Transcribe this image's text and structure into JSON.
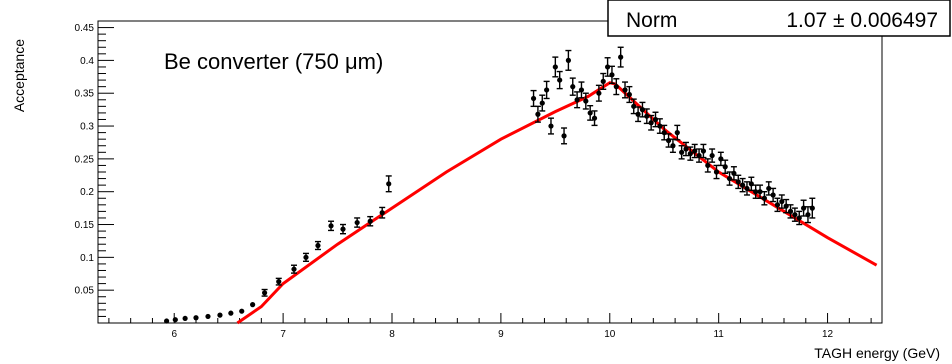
{
  "chart_data": {
    "type": "scatter",
    "title": "",
    "xlabel": "TAGH energy   (GeV)",
    "ylabel": "Acceptance",
    "annotation": "Be converter (750 μm)",
    "stats_box": {
      "label": "Norm",
      "value": "1.07 ± 0.006497"
    },
    "xlim": [
      5.3,
      12.5
    ],
    "ylim": [
      0,
      0.46
    ],
    "x_ticks": [
      6,
      7,
      8,
      9,
      10,
      11,
      12
    ],
    "x_tick_labels": [
      "6",
      "7",
      "8",
      "9",
      "10",
      "11",
      "12"
    ],
    "y_ticks": [
      0.05,
      0.1,
      0.15,
      0.2,
      0.25,
      0.3,
      0.35,
      0.4,
      0.45
    ],
    "y_tick_labels": [
      "0.05",
      "0.1",
      "0.15",
      "0.2",
      "0.25",
      "0.3",
      "0.35",
      "0.4",
      "0.45"
    ],
    "grid": false,
    "colors": {
      "data": "#000000",
      "fit": "#ff0000"
    },
    "series": [
      {
        "type": "scatter",
        "points": [
          {
            "x": 5.93,
            "y": 0.003,
            "err": 0.003
          },
          {
            "x": 6.01,
            "y": 0.005,
            "err": 0.003
          },
          {
            "x": 6.1,
            "y": 0.007,
            "err": 0.003
          },
          {
            "x": 6.2,
            "y": 0.008,
            "err": 0.003
          },
          {
            "x": 6.31,
            "y": 0.01,
            "err": 0.003
          },
          {
            "x": 6.42,
            "y": 0.012,
            "err": 0.003
          },
          {
            "x": 6.52,
            "y": 0.015,
            "err": 0.003
          },
          {
            "x": 6.62,
            "y": 0.018,
            "err": 0.004
          },
          {
            "x": 6.72,
            "y": 0.028,
            "err": 0.004
          },
          {
            "x": 6.83,
            "y": 0.046,
            "err": 0.005
          },
          {
            "x": 6.96,
            "y": 0.063,
            "err": 0.005
          },
          {
            "x": 7.1,
            "y": 0.082,
            "err": 0.006
          },
          {
            "x": 7.21,
            "y": 0.1,
            "err": 0.006
          },
          {
            "x": 7.32,
            "y": 0.118,
            "err": 0.006
          },
          {
            "x": 7.44,
            "y": 0.148,
            "err": 0.007
          },
          {
            "x": 7.55,
            "y": 0.143,
            "err": 0.007
          },
          {
            "x": 7.68,
            "y": 0.153,
            "err": 0.007
          },
          {
            "x": 7.8,
            "y": 0.155,
            "err": 0.007
          },
          {
            "x": 7.91,
            "y": 0.168,
            "err": 0.008
          },
          {
            "x": 7.97,
            "y": 0.212,
            "err": 0.012
          },
          {
            "x": 9.3,
            "y": 0.342,
            "err": 0.012
          },
          {
            "x": 9.34,
            "y": 0.318,
            "err": 0.012
          },
          {
            "x": 9.38,
            "y": 0.335,
            "err": 0.012
          },
          {
            "x": 9.42,
            "y": 0.355,
            "err": 0.013
          },
          {
            "x": 9.46,
            "y": 0.3,
            "err": 0.012
          },
          {
            "x": 9.5,
            "y": 0.39,
            "err": 0.015
          },
          {
            "x": 9.54,
            "y": 0.37,
            "err": 0.013
          },
          {
            "x": 9.58,
            "y": 0.285,
            "err": 0.012
          },
          {
            "x": 9.62,
            "y": 0.4,
            "err": 0.015
          },
          {
            "x": 9.66,
            "y": 0.36,
            "err": 0.013
          },
          {
            "x": 9.7,
            "y": 0.34,
            "err": 0.012
          },
          {
            "x": 9.74,
            "y": 0.355,
            "err": 0.012
          },
          {
            "x": 9.78,
            "y": 0.338,
            "err": 0.012
          },
          {
            "x": 9.82,
            "y": 0.32,
            "err": 0.011
          },
          {
            "x": 9.86,
            "y": 0.312,
            "err": 0.011
          },
          {
            "x": 9.9,
            "y": 0.35,
            "err": 0.012
          },
          {
            "x": 9.94,
            "y": 0.368,
            "err": 0.012
          },
          {
            "x": 9.98,
            "y": 0.39,
            "err": 0.014
          },
          {
            "x": 10.02,
            "y": 0.378,
            "err": 0.013
          },
          {
            "x": 10.06,
            "y": 0.36,
            "err": 0.012
          },
          {
            "x": 10.1,
            "y": 0.405,
            "err": 0.015
          },
          {
            "x": 10.14,
            "y": 0.355,
            "err": 0.012
          },
          {
            "x": 10.18,
            "y": 0.348,
            "err": 0.012
          },
          {
            "x": 10.22,
            "y": 0.33,
            "err": 0.011
          },
          {
            "x": 10.26,
            "y": 0.318,
            "err": 0.011
          },
          {
            "x": 10.3,
            "y": 0.325,
            "err": 0.011
          },
          {
            "x": 10.34,
            "y": 0.315,
            "err": 0.011
          },
          {
            "x": 10.38,
            "y": 0.305,
            "err": 0.011
          },
          {
            "x": 10.42,
            "y": 0.31,
            "err": 0.011
          },
          {
            "x": 10.46,
            "y": 0.3,
            "err": 0.011
          },
          {
            "x": 10.5,
            "y": 0.29,
            "err": 0.011
          },
          {
            "x": 10.54,
            "y": 0.278,
            "err": 0.01
          },
          {
            "x": 10.58,
            "y": 0.27,
            "err": 0.01
          },
          {
            "x": 10.62,
            "y": 0.29,
            "err": 0.011
          },
          {
            "x": 10.66,
            "y": 0.26,
            "err": 0.01
          },
          {
            "x": 10.7,
            "y": 0.265,
            "err": 0.01
          },
          {
            "x": 10.74,
            "y": 0.258,
            "err": 0.01
          },
          {
            "x": 10.78,
            "y": 0.262,
            "err": 0.01
          },
          {
            "x": 10.82,
            "y": 0.255,
            "err": 0.01
          },
          {
            "x": 10.86,
            "y": 0.262,
            "err": 0.01
          },
          {
            "x": 10.9,
            "y": 0.24,
            "err": 0.01
          },
          {
            "x": 10.94,
            "y": 0.255,
            "err": 0.01
          },
          {
            "x": 10.98,
            "y": 0.23,
            "err": 0.01
          },
          {
            "x": 11.02,
            "y": 0.25,
            "err": 0.01
          },
          {
            "x": 11.06,
            "y": 0.238,
            "err": 0.01
          },
          {
            "x": 11.1,
            "y": 0.22,
            "err": 0.01
          },
          {
            "x": 11.14,
            "y": 0.228,
            "err": 0.01
          },
          {
            "x": 11.18,
            "y": 0.215,
            "err": 0.01
          },
          {
            "x": 11.22,
            "y": 0.21,
            "err": 0.01
          },
          {
            "x": 11.26,
            "y": 0.205,
            "err": 0.01
          },
          {
            "x": 11.3,
            "y": 0.212,
            "err": 0.01
          },
          {
            "x": 11.34,
            "y": 0.2,
            "err": 0.01
          },
          {
            "x": 11.38,
            "y": 0.2,
            "err": 0.01
          },
          {
            "x": 11.42,
            "y": 0.19,
            "err": 0.01
          },
          {
            "x": 11.46,
            "y": 0.205,
            "err": 0.01
          },
          {
            "x": 11.5,
            "y": 0.195,
            "err": 0.01
          },
          {
            "x": 11.54,
            "y": 0.18,
            "err": 0.01
          },
          {
            "x": 11.58,
            "y": 0.185,
            "err": 0.01
          },
          {
            "x": 11.62,
            "y": 0.178,
            "err": 0.01
          },
          {
            "x": 11.66,
            "y": 0.17,
            "err": 0.01
          },
          {
            "x": 11.7,
            "y": 0.165,
            "err": 0.01
          },
          {
            "x": 11.74,
            "y": 0.16,
            "err": 0.01
          },
          {
            "x": 11.78,
            "y": 0.175,
            "err": 0.012
          },
          {
            "x": 11.82,
            "y": 0.165,
            "err": 0.012
          },
          {
            "x": 11.86,
            "y": 0.175,
            "err": 0.015
          }
        ]
      },
      {
        "type": "line",
        "points": [
          {
            "x": 6.58,
            "y": 0.0
          },
          {
            "x": 6.8,
            "y": 0.025
          },
          {
            "x": 7.0,
            "y": 0.06
          },
          {
            "x": 7.5,
            "y": 0.12
          },
          {
            "x": 8.0,
            "y": 0.175
          },
          {
            "x": 8.5,
            "y": 0.23
          },
          {
            "x": 9.0,
            "y": 0.28
          },
          {
            "x": 9.5,
            "y": 0.322
          },
          {
            "x": 9.8,
            "y": 0.345
          },
          {
            "x": 10.0,
            "y": 0.366
          },
          {
            "x": 10.05,
            "y": 0.364
          },
          {
            "x": 10.5,
            "y": 0.295
          },
          {
            "x": 11.0,
            "y": 0.23
          },
          {
            "x": 11.5,
            "y": 0.18
          },
          {
            "x": 12.0,
            "y": 0.13
          },
          {
            "x": 12.45,
            "y": 0.088
          }
        ]
      }
    ]
  }
}
